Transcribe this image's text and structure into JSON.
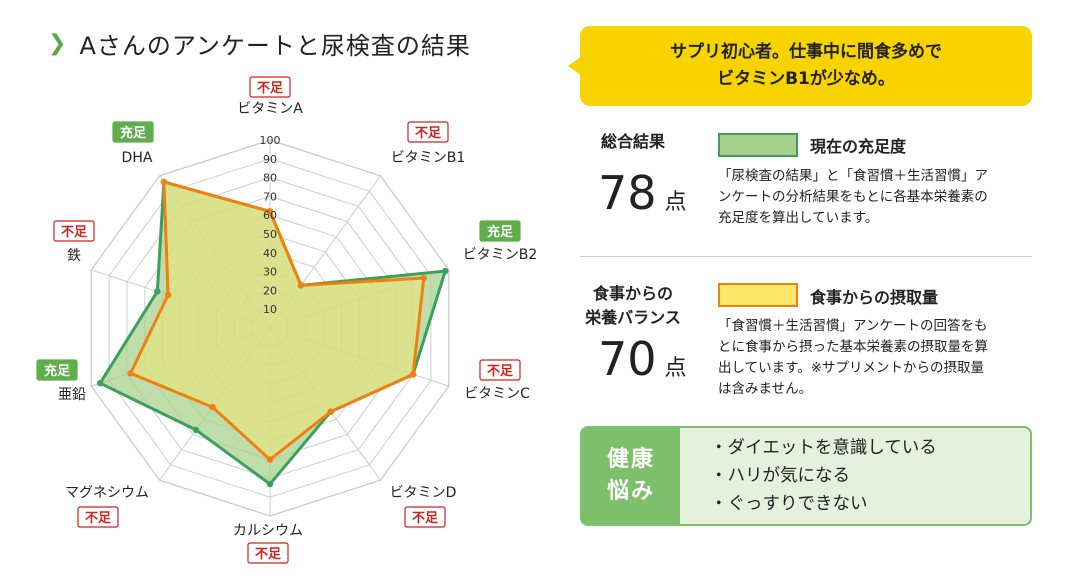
{
  "title": "Aさんのアンケートと尿検査の結果",
  "colors": {
    "green": "#3aa05c",
    "green_fill": "#a9d18e",
    "orange": "#f08010",
    "orange_fill": "#fde86a",
    "tag_short": "#d0211d",
    "tag_full": "#5fae4b",
    "bubble": "#f7d300"
  },
  "chart_data": {
    "type": "radar",
    "title": "",
    "scale": {
      "min": 0,
      "max": 100,
      "ticks": [
        10,
        20,
        30,
        40,
        50,
        60,
        70,
        80,
        90,
        100
      ]
    },
    "axes": [
      {
        "name": "ビタミンA",
        "status": "不足"
      },
      {
        "name": "ビタミンB1",
        "status": "不足"
      },
      {
        "name": "ビタミンB2",
        "status": "充足"
      },
      {
        "name": "ビタミンC",
        "status": "不足"
      },
      {
        "name": "ビタミンD",
        "status": "不足"
      },
      {
        "name": "カルシウム",
        "status": "不足"
      },
      {
        "name": "マグネシウム",
        "status": "不足"
      },
      {
        "name": "亜鉛",
        "status": "充足"
      },
      {
        "name": "鉄",
        "status": "不足"
      },
      {
        "name": "DHA",
        "status": "充足"
      }
    ],
    "series": [
      {
        "name": "現在の充足度",
        "values": [
          62,
          28,
          98,
          80,
          55,
          83,
          67,
          95,
          63,
          96
        ]
      },
      {
        "name": "食事からの摂取量",
        "values": [
          62,
          28,
          86,
          80,
          55,
          70,
          52,
          78,
          57,
          96
        ]
      }
    ]
  },
  "bubble": {
    "line1": "サプリ初心者。仕事中に間食多めで",
    "line2": "ビタミンB1が少なめ。"
  },
  "overall": {
    "label": "総合結果",
    "score": "78",
    "unit": "点",
    "legend": "現在の充足度",
    "description": "「尿検査の結果」と「食習慣＋生活習慣」アンケートの分析結果をもとに各基本栄養素の充足度を算出しています。"
  },
  "diet": {
    "label_line1": "食事からの",
    "label_line2": "栄養バランス",
    "score": "70",
    "unit": "点",
    "legend": "食事からの摂取量",
    "description": "「食習慣＋生活習慣」アンケートの回答をもとに食事から摂った基本栄養素の摂取量を算出しています。※サプリメントからの摂取量は含みません。"
  },
  "health": {
    "tag_line1": "健康",
    "tag_line2": "悩み",
    "items": [
      "・ダイエットを意識している",
      "・ハリが気になる",
      "・ぐっすりできない"
    ]
  }
}
